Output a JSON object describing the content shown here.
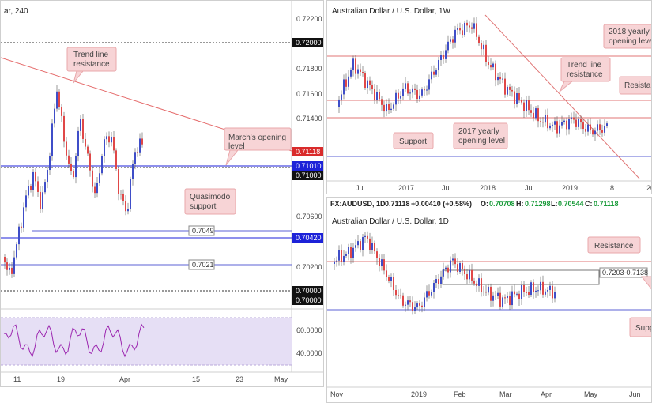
{
  "left": {
    "title": "ar, 240",
    "price_ticks": [
      "0.72200",
      "0.71800",
      "0.71600",
      "0.71400",
      "0.70600",
      "0.70400",
      "0.70200",
      "0.70000"
    ],
    "price_tags": {
      "p72000": "0.72000",
      "p71118": "0.71118",
      "p71010": "0.71010",
      "p71000": "0.71000",
      "p70420": "0.70420",
      "p70000a": "0.70000",
      "p70000b": "0.70000",
      "p70049": "0.7049",
      "p70021": "0.7021"
    },
    "osc_ticks": [
      "60.0000",
      "40.0000"
    ],
    "x_ticks": [
      "11",
      "19",
      "Apr",
      "15",
      "23",
      "May"
    ],
    "callouts": {
      "trend": [
        "Trend line",
        "resistance"
      ],
      "march": [
        "March's opening",
        "level"
      ],
      "quasi": [
        "Quasimodo",
        "support"
      ]
    },
    "colors": {
      "accent_up": "#3f4ec8",
      "accent_down": "#e04848",
      "tag_red": "#d92b2b",
      "tag_blue": "#1d22d8",
      "osc_bg": "#e6dff5"
    }
  },
  "weekly": {
    "title": "Australian Dollar / U.S. Dollar, 1W",
    "x_ticks": [
      "Jul",
      "2017",
      "Jul",
      "2018",
      "Jul",
      "2019",
      "8",
      "20"
    ],
    "callouts": {
      "yearly2018": [
        "2018 yearly",
        "opening level"
      ],
      "trend": [
        "Trend line",
        "resistance"
      ],
      "resistance": [
        "Resistan"
      ],
      "support": [
        "Support"
      ],
      "yearly2017": [
        "2017 yearly",
        "opening level"
      ]
    }
  },
  "daily": {
    "title": "Australian Dollar / U.S. Dollar, 1D",
    "info_symbol": "FX:AUDUSD, 1D",
    "info_last": "0.71118",
    "info_change": "+0.00410 (+0.58%)",
    "info_o_label": "O:",
    "info_o": "0.70708",
    "info_h_label": "H:",
    "info_h": "0.71298",
    "info_l_label": "L:",
    "info_l": "0.70544",
    "info_c_label": "C:",
    "info_c": "0.71118",
    "range_label": "0.7203-0.7138",
    "x_ticks": [
      "Nov",
      "2019",
      "Feb",
      "Mar",
      "Apr",
      "May",
      "Jun"
    ],
    "callouts": {
      "resistance": [
        "Resistance"
      ],
      "support": [
        "Suppo"
      ]
    }
  }
}
